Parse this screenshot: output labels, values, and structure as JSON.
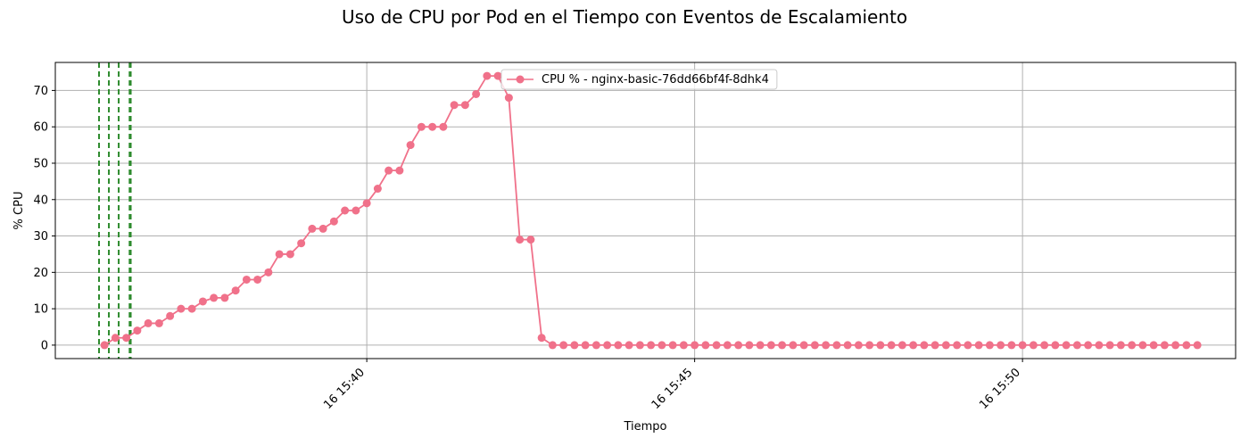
{
  "chart_data": {
    "type": "line",
    "title": "Uso de CPU por Pod en el Tiempo con Eventos de Escalamiento",
    "xlabel": "Tiempo",
    "ylabel": "% CPU",
    "ylim": [
      -3.7,
      77.7
    ],
    "y_ticks": [
      0,
      10,
      20,
      30,
      40,
      50,
      60,
      70
    ],
    "xlim": [
      "15:35:15",
      "15:53:15"
    ],
    "x_ticks": [
      {
        "time": "15:40:00",
        "label": "16 15:40"
      },
      {
        "time": "15:45:00",
        "label": "16 15:45"
      },
      {
        "time": "15:50:00",
        "label": "16 15:50"
      }
    ],
    "grid": true,
    "legend": "upper center",
    "colors": {
      "series": "#f0718a",
      "scaling_event": "#2e8b2e"
    },
    "series": [
      {
        "name": "CPU % - nginx-basic-76dd66bf4f-8dhk4",
        "x": [
          "15:36:00",
          "15:36:10",
          "15:36:20",
          "15:36:30",
          "15:36:40",
          "15:36:50",
          "15:37:00",
          "15:37:10",
          "15:37:20",
          "15:37:30",
          "15:37:40",
          "15:37:50",
          "15:38:00",
          "15:38:10",
          "15:38:20",
          "15:38:30",
          "15:38:40",
          "15:38:50",
          "15:39:00",
          "15:39:10",
          "15:39:20",
          "15:39:30",
          "15:39:40",
          "15:39:50",
          "15:40:00",
          "15:40:10",
          "15:40:20",
          "15:40:30",
          "15:40:40",
          "15:40:50",
          "15:41:00",
          "15:41:10",
          "15:41:20",
          "15:41:30",
          "15:41:40",
          "15:41:50",
          "15:42:00",
          "15:42:10",
          "15:42:20",
          "15:42:30",
          "15:42:40",
          "15:42:50",
          "15:43:00",
          "15:43:10",
          "15:43:20",
          "15:43:30",
          "15:43:40",
          "15:43:50",
          "15:44:00",
          "15:44:10",
          "15:44:20",
          "15:44:30",
          "15:44:40",
          "15:44:50",
          "15:45:00",
          "15:45:10",
          "15:45:20",
          "15:45:30",
          "15:45:40",
          "15:45:50",
          "15:46:00",
          "15:46:10",
          "15:46:20",
          "15:46:30",
          "15:46:40",
          "15:46:50",
          "15:47:00",
          "15:47:10",
          "15:47:20",
          "15:47:30",
          "15:47:40",
          "15:47:50",
          "15:48:00",
          "15:48:10",
          "15:48:20",
          "15:48:30",
          "15:48:40",
          "15:48:50",
          "15:49:00",
          "15:49:10",
          "15:49:20",
          "15:49:30",
          "15:49:40",
          "15:49:50",
          "15:50:00",
          "15:50:10",
          "15:50:20",
          "15:50:30",
          "15:50:40",
          "15:50:50",
          "15:51:00",
          "15:51:10",
          "15:51:20",
          "15:51:30",
          "15:51:40",
          "15:51:50",
          "15:52:00",
          "15:52:10",
          "15:52:20",
          "15:52:30",
          "15:52:40"
        ],
        "values": [
          0,
          2,
          2,
          4,
          6,
          6,
          8,
          10,
          10,
          12,
          13,
          13,
          15,
          18,
          18,
          20,
          25,
          25,
          28,
          32,
          32,
          34,
          37,
          37,
          39,
          43,
          48,
          48,
          55,
          60,
          60,
          60,
          66,
          66,
          69,
          74,
          74,
          68,
          29,
          29,
          2,
          0,
          0,
          0,
          0,
          0,
          0,
          0,
          0,
          0,
          0,
          0,
          0,
          0,
          0,
          0,
          0,
          0,
          0,
          0,
          0,
          0,
          0,
          0,
          0,
          0,
          0,
          0,
          0,
          0,
          0,
          0,
          0,
          0,
          0,
          0,
          0,
          0,
          0,
          0,
          0,
          0,
          0,
          0,
          0,
          0,
          0,
          0,
          0,
          0,
          0,
          0,
          0,
          0,
          0,
          0,
          0,
          0,
          0,
          0,
          0
        ]
      }
    ],
    "scaling_events": [
      "15:35:55",
      "15:36:04",
      "15:36:13",
      "15:36:23",
      "15:36:24"
    ]
  }
}
